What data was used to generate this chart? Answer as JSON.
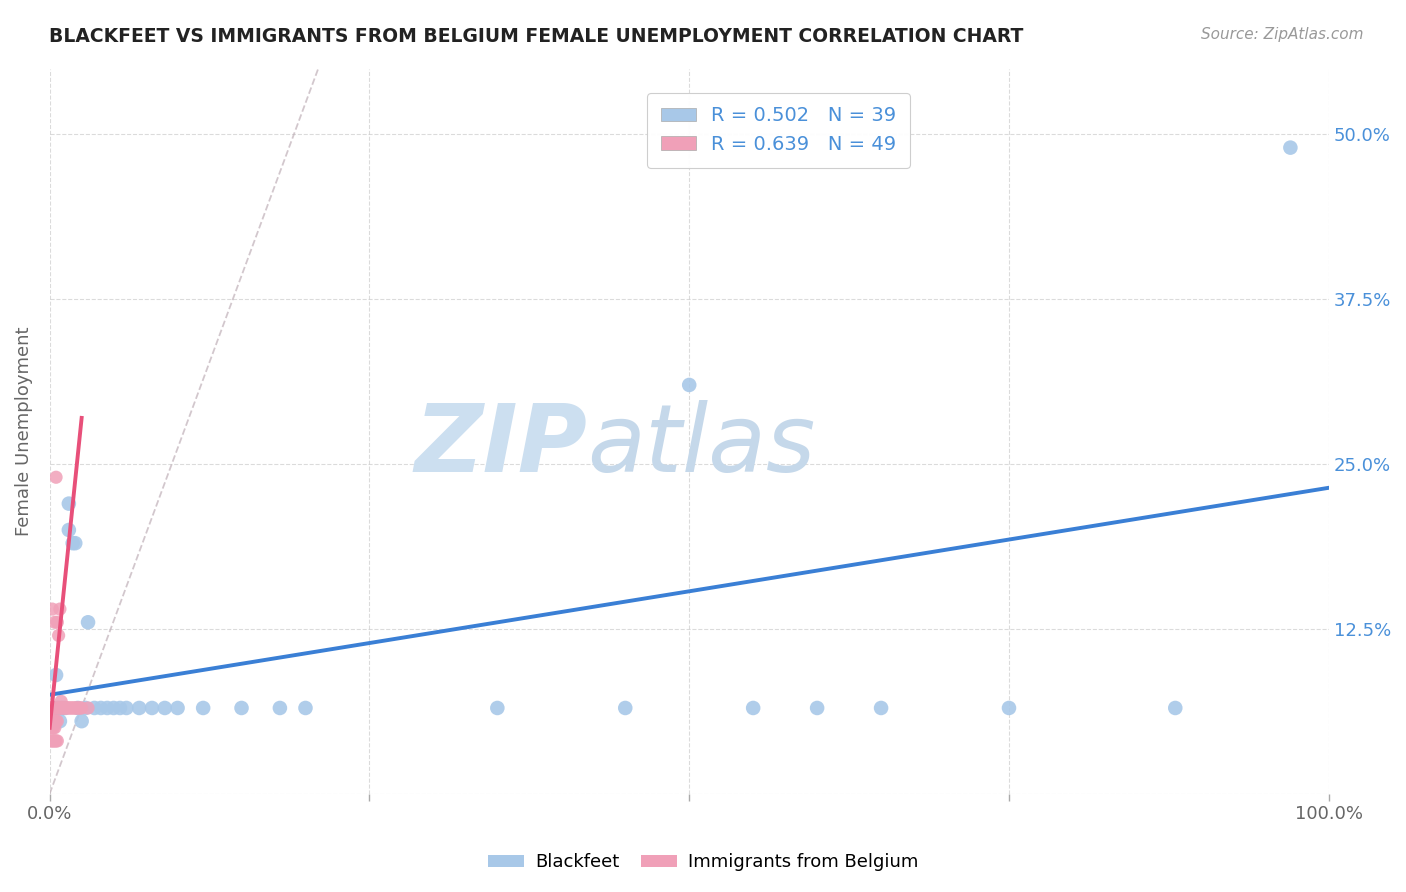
{
  "title": "BLACKFEET VS IMMIGRANTS FROM BELGIUM FEMALE UNEMPLOYMENT CORRELATION CHART",
  "source_text": "Source: ZipAtlas.com",
  "ylabel": "Female Unemployment",
  "xlim": [
    0,
    1.0
  ],
  "ylim": [
    0,
    0.55
  ],
  "r_blue": 0.502,
  "n_blue": 39,
  "r_pink": 0.639,
  "n_pink": 49,
  "blue_color": "#a8c8e8",
  "pink_color": "#f0a0b8",
  "blue_line_color": "#3a7fd5",
  "pink_line_color": "#e8507a",
  "blue_scatter_x": [
    0.003,
    0.005,
    0.006,
    0.007,
    0.008,
    0.009,
    0.01,
    0.012,
    0.015,
    0.015,
    0.018,
    0.02,
    0.022,
    0.025,
    0.028,
    0.03,
    0.035,
    0.04,
    0.045,
    0.05,
    0.055,
    0.06,
    0.07,
    0.08,
    0.09,
    0.1,
    0.12,
    0.15,
    0.18,
    0.2,
    0.35,
    0.45,
    0.5,
    0.55,
    0.6,
    0.65,
    0.75,
    0.88,
    0.97
  ],
  "blue_scatter_y": [
    0.065,
    0.09,
    0.065,
    0.065,
    0.055,
    0.065,
    0.065,
    0.065,
    0.2,
    0.22,
    0.19,
    0.19,
    0.065,
    0.055,
    0.065,
    0.13,
    0.065,
    0.065,
    0.065,
    0.065,
    0.065,
    0.065,
    0.065,
    0.065,
    0.065,
    0.065,
    0.065,
    0.065,
    0.065,
    0.065,
    0.065,
    0.065,
    0.31,
    0.065,
    0.065,
    0.065,
    0.065,
    0.065,
    0.49
  ],
  "pink_scatter_x": [
    0.001,
    0.001,
    0.001,
    0.001,
    0.001,
    0.002,
    0.002,
    0.002,
    0.002,
    0.002,
    0.003,
    0.003,
    0.003,
    0.003,
    0.004,
    0.004,
    0.004,
    0.004,
    0.005,
    0.005,
    0.005,
    0.006,
    0.006,
    0.006,
    0.007,
    0.007,
    0.007,
    0.008,
    0.008,
    0.009,
    0.009,
    0.01,
    0.01,
    0.011,
    0.012,
    0.013,
    0.014,
    0.015,
    0.016,
    0.017,
    0.018,
    0.019,
    0.02,
    0.021,
    0.022,
    0.023,
    0.024,
    0.025,
    0.03
  ],
  "pink_scatter_y": [
    0.04,
    0.05,
    0.06,
    0.055,
    0.065,
    0.04,
    0.05,
    0.055,
    0.065,
    0.14,
    0.04,
    0.05,
    0.055,
    0.065,
    0.04,
    0.05,
    0.065,
    0.13,
    0.04,
    0.055,
    0.24,
    0.04,
    0.055,
    0.13,
    0.065,
    0.12,
    0.065,
    0.065,
    0.14,
    0.07,
    0.065,
    0.065,
    0.065,
    0.065,
    0.065,
    0.065,
    0.065,
    0.065,
    0.065,
    0.065,
    0.065,
    0.065,
    0.065,
    0.065,
    0.065,
    0.065,
    0.065,
    0.065,
    0.065
  ],
  "blue_line_x0": 0.0,
  "blue_line_y0": 0.075,
  "blue_line_x1": 1.0,
  "blue_line_y1": 0.232,
  "pink_line_x0": 0.0,
  "pink_line_y0": 0.05,
  "pink_line_x1": 0.025,
  "pink_line_y1": 0.285,
  "dash_line_x0": 0.0,
  "dash_line_y0": 0.0,
  "dash_line_x1": 0.21,
  "dash_line_y1": 0.55
}
